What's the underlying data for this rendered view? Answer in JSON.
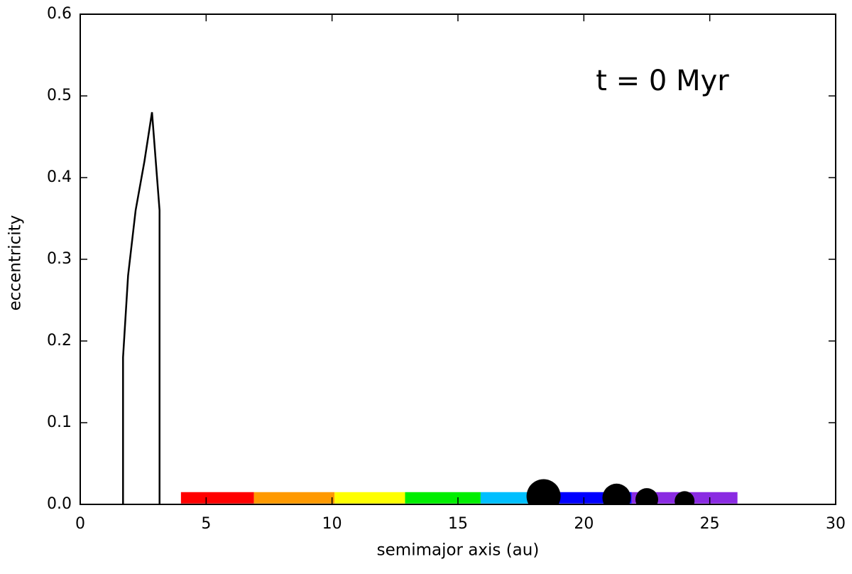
{
  "chart_data": {
    "type": "scatter",
    "annotation": "t = 0 Myr",
    "xlabel": "semimajor axis (au)",
    "ylabel": "eccentricity",
    "xlim": [
      0,
      30
    ],
    "xticks": [
      0,
      5,
      10,
      15,
      20,
      25,
      30
    ],
    "ylim": [
      0,
      0.6
    ],
    "yticks": [
      {
        "value": 0,
        "label": "0.0"
      },
      0.1,
      0.2,
      0.3,
      0.4,
      0.5,
      0.6
    ],
    "series": [
      {
        "type": "line",
        "color": "#000000",
        "x": [
          1.7,
          1.7,
          1.9,
          2.2,
          2.55,
          2.85,
          3.15,
          3.15
        ],
        "values": [
          0,
          0.18,
          0.28,
          0.36,
          0.42,
          0.48,
          0.36,
          0
        ]
      },
      {
        "type": "band",
        "color": "#ff0000",
        "x": [
          4.0,
          6.9
        ],
        "values": [
          0.008,
          0.008
        ]
      },
      {
        "type": "band",
        "color": "#ff9900",
        "x": [
          6.9,
          10.1
        ],
        "values": [
          0.008,
          0.008
        ]
      },
      {
        "type": "band",
        "color": "#ffff00",
        "x": [
          10.1,
          12.9
        ],
        "values": [
          0.008,
          0.008
        ]
      },
      {
        "type": "band",
        "color": "#00ee00",
        "x": [
          12.9,
          15.9
        ],
        "values": [
          0.008,
          0.008
        ]
      },
      {
        "type": "band",
        "color": "#00bfff",
        "x": [
          15.9,
          17.8
        ],
        "values": [
          0.008,
          0.008
        ]
      },
      {
        "type": "band",
        "color": "#0000ff",
        "x": [
          17.8,
          21.9
        ],
        "values": [
          0.008,
          0.008
        ]
      },
      {
        "type": "band",
        "color": "#8a2be2",
        "x": [
          21.9,
          26.1
        ],
        "values": [
          0.008,
          0.008
        ]
      },
      {
        "type": "scatter",
        "color": "#000000",
        "x": [
          18.4,
          21.3,
          22.5,
          24.0
        ],
        "values": [
          0.01,
          0.008,
          0.006,
          0.004
        ],
        "sizes": [
          24,
          20,
          16,
          14
        ]
      }
    ]
  }
}
